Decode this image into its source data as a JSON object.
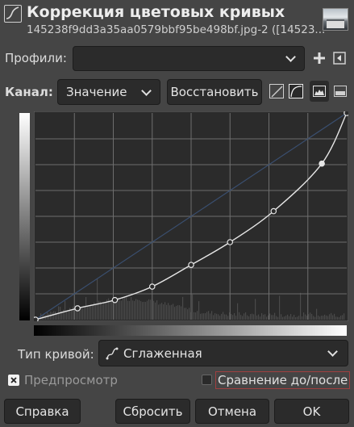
{
  "header": {
    "title": "Коррекция цветовых кривых",
    "subtitle": "145238f9dd3a35aa0579bbf95be498bf.jpg-2 ([14523..."
  },
  "profiles": {
    "label": "Профили:",
    "value": ""
  },
  "channel": {
    "label": "Канал:",
    "value": "Значение",
    "reset_label": "Восстановить"
  },
  "curve_points": [
    {
      "in": 0.0,
      "out": 0.0
    },
    {
      "in": 0.135,
      "out": 0.055
    },
    {
      "in": 0.255,
      "out": 0.095
    },
    {
      "in": 0.375,
      "out": 0.16
    },
    {
      "in": 0.5,
      "out": 0.265
    },
    {
      "in": 0.625,
      "out": 0.375
    },
    {
      "in": 0.765,
      "out": 0.525
    },
    {
      "in": 0.92,
      "out": 0.755
    },
    {
      "in": 1.0,
      "out": 1.0
    }
  ],
  "curve_type": {
    "label": "Тип кривой:",
    "value": "Сглаженная",
    "icon": "smooth-curve-icon"
  },
  "options": {
    "preview_label": "Предпросмотр",
    "compare_label": "Сравнение до/после"
  },
  "buttons": {
    "help": "Справка",
    "reset": "Сбросить",
    "cancel": "Отмена",
    "ok": "OK"
  },
  "colors": {
    "background": "#454545",
    "graph_bg": "#2b2b2b",
    "curve": "#e6e6e6",
    "accent_border": "#a04040"
  }
}
